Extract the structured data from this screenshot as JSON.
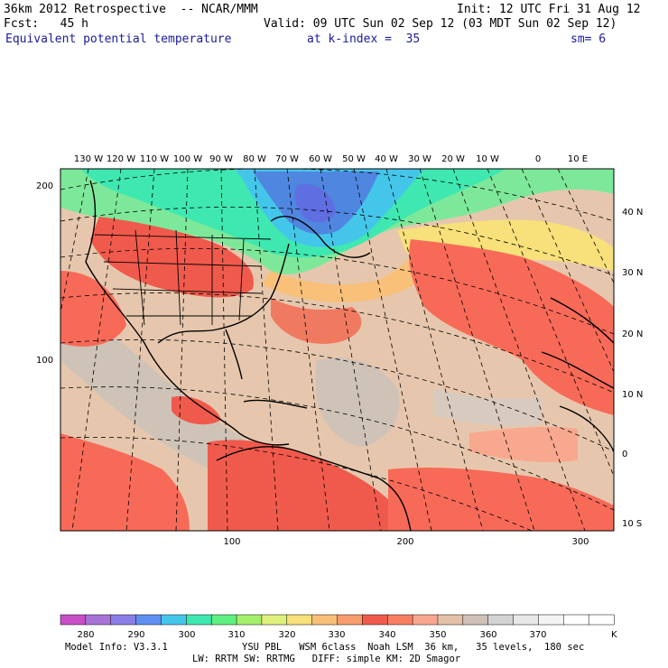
{
  "header": {
    "title": "36km 2012 Retrospective  -- NCAR/MMM",
    "init": "Init: 12 UTC Fri 31 Aug 12",
    "fcst": "Fcst:   45 h",
    "valid": "Valid: 09 UTC Sun 02 Sep 12 (03 MDT Sun 02 Sep 12)",
    "field": "Equivalent potential temperature",
    "level": "at k-index =  35",
    "smooth": "sm= 6"
  },
  "top_lon_labels": [
    "130 W",
    "120 W",
    "110 W",
    "100 W",
    "90 W",
    "80 W",
    "70 W",
    "60 W",
    "50 W",
    "40 W",
    "30 W",
    "20 W",
    "10 W",
    "0",
    "10 E"
  ],
  "right_lat_labels": [
    "40 N",
    "30 N",
    "20 N",
    "10 N",
    "0",
    "10 S"
  ],
  "left_axis_labels": [
    "200",
    "100"
  ],
  "bottom_axis_labels": [
    "100",
    "200",
    "300"
  ],
  "colorbar": {
    "colors": [
      "#c84fc8",
      "#a874d8",
      "#8a7ee8",
      "#5f8ff0",
      "#44c6ea",
      "#3ee8b0",
      "#5ef080",
      "#a4f06c",
      "#e0f07c",
      "#f8e07a",
      "#f8c078",
      "#f89c6e",
      "#f05a4c",
      "#f87e62",
      "#f8a88e",
      "#e4c2a8",
      "#cfc3b7",
      "#d4d4d4",
      "#e8e8e8",
      "#f4f4f4",
      "#ffffff",
      "#ffffff"
    ],
    "labels": [
      "280",
      "290",
      "300",
      "310",
      "320",
      "330",
      "340",
      "350",
      "360",
      "370"
    ],
    "unit": "K"
  },
  "footer": {
    "model": "Model Info: V3.3.1",
    "physics1": "YSU PBL   WSM 6class  Noah LSM  36 km,   35 levels,  180 sec",
    "physics2": "LW: RRTM SW: RRTMG   DIFF: simple KM: 2D Smagor"
  }
}
